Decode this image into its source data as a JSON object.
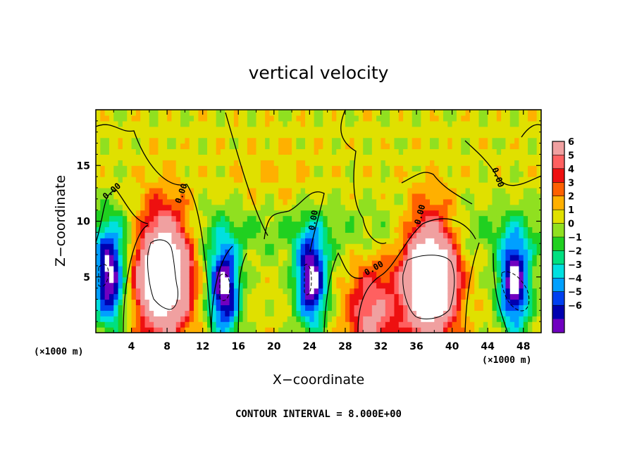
{
  "chart_data": {
    "type": "heatmap",
    "title": "vertical velocity",
    "xlabel": "X−coordinate",
    "ylabel": "Z−coordinate",
    "x_unit": "(×1000 m)",
    "z_unit": "(×1000 m)",
    "xlim": [
      0,
      50
    ],
    "ylim": [
      0,
      20
    ],
    "x_ticks": [
      "4",
      "8",
      "12",
      "16",
      "20",
      "24",
      "28",
      "32",
      "36",
      "40",
      "44",
      "48"
    ],
    "y_ticks": [
      "5",
      "10",
      "15"
    ],
    "contour_interval": "CONTOUR INTERVAL = 8.000E+00",
    "zero_contour_label": "0.00",
    "colorbar": {
      "levels": [
        "6",
        "5",
        "4",
        "3",
        "2",
        "1",
        "0",
        "−1",
        "−2",
        "−3",
        "−4",
        "−5",
        "−6"
      ],
      "colors": [
        "#f0a0a0",
        "#ff6060",
        "#ee1010",
        "#ff6000",
        "#ffb000",
        "#e0e000",
        "#90e020",
        "#20d020",
        "#00e080",
        "#00e0e0",
        "#00a0ff",
        "#0040f0",
        "#0000b0",
        "#7000c0"
      ]
    },
    "features": [
      {
        "kind": "updraft",
        "x": 7.6,
        "z": 5.5,
        "peak": 14
      },
      {
        "kind": "updraft",
        "x": 37.5,
        "z": 5.0,
        "peak": 14
      },
      {
        "kind": "updraft",
        "x": 31.0,
        "z": 1.5,
        "peak": 5
      },
      {
        "kind": "downdraft",
        "x": 1.5,
        "z": 5.0,
        "peak": -9
      },
      {
        "kind": "downdraft",
        "x": 14.4,
        "z": 4.0,
        "peak": -9
      },
      {
        "kind": "downdraft",
        "x": 24.2,
        "z": 4.8,
        "peak": -9
      },
      {
        "kind": "downdraft",
        "x": 47.0,
        "z": 4.5,
        "peak": -9
      }
    ]
  }
}
